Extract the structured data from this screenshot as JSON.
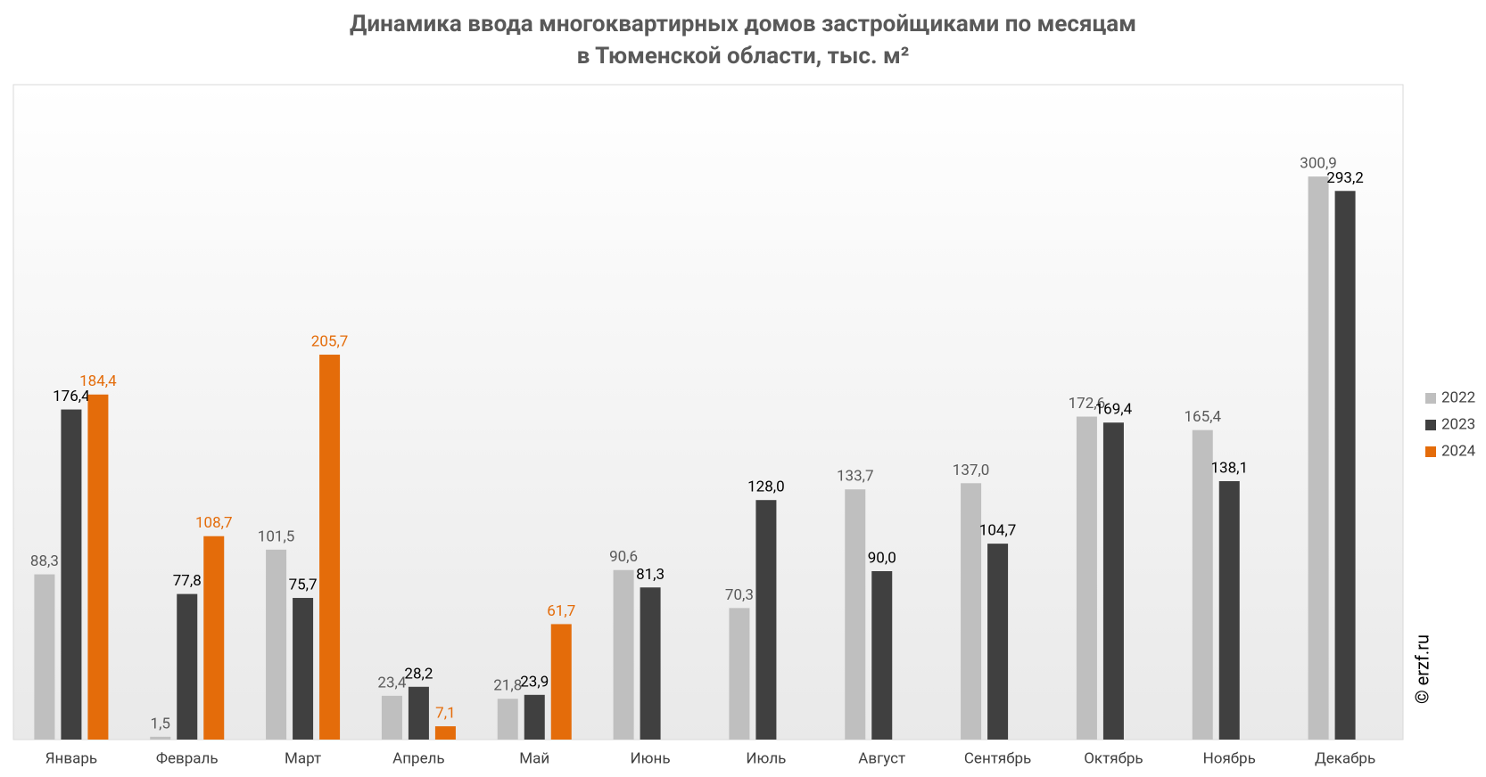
{
  "chart_data": {
    "type": "bar",
    "title": [
      "Динамика ввода многоквартирных домов застройщиками по месяцам",
      "в Тюменской области, тыс. м²"
    ],
    "categories": [
      "Январь",
      "Февраль",
      "Март",
      "Апрель",
      "Май",
      "Июнь",
      "Июль",
      "Август",
      "Сентябрь",
      "Октябрь",
      "Ноябрь",
      "Декабрь"
    ],
    "series": [
      {
        "name": "2022",
        "color": "#bfbfbf",
        "label_color": "#595959",
        "values": [
          88.3,
          1.5,
          101.5,
          23.4,
          21.8,
          90.6,
          70.3,
          133.7,
          137.0,
          172.6,
          165.4,
          300.9
        ],
        "value_labels": [
          "88,3",
          "1,5",
          "101,5",
          "23,4",
          "21,8",
          "90,6",
          "70,3",
          "133,7",
          "137,0",
          "172,6",
          "165,4",
          "300,9"
        ]
      },
      {
        "name": "2023",
        "color": "#404040",
        "label_color": "#000000",
        "values": [
          176.4,
          77.8,
          75.7,
          28.2,
          23.9,
          81.3,
          128.0,
          90.0,
          104.7,
          169.4,
          138.1,
          293.2
        ],
        "value_labels": [
          "176,4",
          "77,8",
          "75,7",
          "28,2",
          "23,9",
          "81,3",
          "128,0",
          "90,0",
          "104,7",
          "169,4",
          "138,1",
          "293,2"
        ]
      },
      {
        "name": "2024",
        "color": "#e46c0a",
        "label_color": "#e46c0a",
        "values": [
          184.4,
          108.7,
          205.7,
          7.1,
          61.7,
          null,
          null,
          null,
          null,
          null,
          null,
          null
        ],
        "value_labels": [
          "184,4",
          "108,7",
          "205,7",
          "7,1",
          "61,7",
          null,
          null,
          null,
          null,
          null,
          null,
          null
        ]
      }
    ],
    "ylim": [
      0,
      350
    ],
    "legend": "right",
    "annotation": "© erzf.ru"
  }
}
